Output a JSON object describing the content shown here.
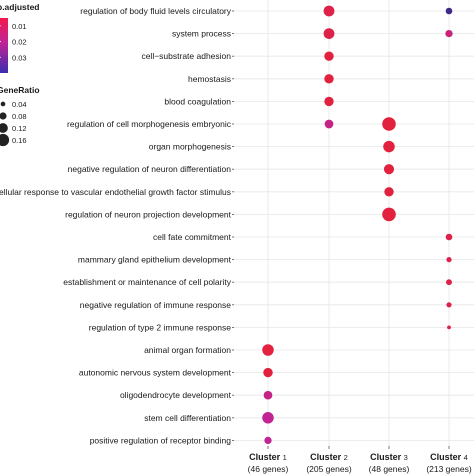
{
  "chart_data": {
    "type": "scatter",
    "title": "",
    "xlabel": "",
    "ylabel": "",
    "grid": true,
    "legend_position": "top-left",
    "clusters": [
      {
        "name": "Cluster",
        "num": "1",
        "count": "(46 genes)"
      },
      {
        "name": "Cluster",
        "num": "2",
        "count": "(205 genes)"
      },
      {
        "name": "Cluster",
        "num": "3",
        "count": "(48 genes)"
      },
      {
        "name": "Cluster",
        "num": "4",
        "count": "(213 genes)"
      }
    ],
    "terms": [
      "regulation of body fluid levels circulatory",
      "system process",
      "cell−substrate adhesion",
      "hemostasis",
      "blood coagulation",
      "regulation of cell morphogenesis embryonic",
      "organ morphogenesis",
      "negative regulation of neuron differentiation",
      "cellular response to vascular endothelial growth factor stimulus",
      "regulation of neuron projection development",
      "cell fate commitment",
      "mammary gland epithelium development",
      "establishment or maintenance of cell polarity",
      "negative regulation of immune response",
      "regulation of type 2 immune response",
      "animal organ formation",
      "autonomic nervous system development",
      "oligodendrocyte development",
      "stem cell differentiation",
      "positive regulation of receptor binding"
    ],
    "points": [
      {
        "term": "regulation of body fluid levels circulatory",
        "cluster": 2,
        "gene_ratio": 0.12,
        "p_adjusted": 0.01
      },
      {
        "term": "regulation of body fluid levels circulatory",
        "cluster": 4,
        "gene_ratio": 0.06,
        "p_adjusted": 0.038
      },
      {
        "term": "system process",
        "cluster": 2,
        "gene_ratio": 0.12,
        "p_adjusted": 0.01
      },
      {
        "term": "system process",
        "cluster": 4,
        "gene_ratio": 0.07,
        "p_adjusted": 0.018
      },
      {
        "term": "cell−substrate adhesion",
        "cluster": 2,
        "gene_ratio": 0.1,
        "p_adjusted": 0.008
      },
      {
        "term": "hemostasis",
        "cluster": 2,
        "gene_ratio": 0.1,
        "p_adjusted": 0.008
      },
      {
        "term": "blood coagulation",
        "cluster": 2,
        "gene_ratio": 0.1,
        "p_adjusted": 0.008
      },
      {
        "term": "regulation of cell morphogenesis embryonic",
        "cluster": 2,
        "gene_ratio": 0.09,
        "p_adjusted": 0.02
      },
      {
        "term": "regulation of cell morphogenesis embryonic",
        "cluster": 3,
        "gene_ratio": 0.16,
        "p_adjusted": 0.008
      },
      {
        "term": "organ morphogenesis",
        "cluster": 3,
        "gene_ratio": 0.13,
        "p_adjusted": 0.008
      },
      {
        "term": "negative regulation of neuron differentiation",
        "cluster": 3,
        "gene_ratio": 0.11,
        "p_adjusted": 0.008
      },
      {
        "term": "cellular response to vascular endothelial growth factor stimulus",
        "cluster": 3,
        "gene_ratio": 0.1,
        "p_adjusted": 0.008
      },
      {
        "term": "regulation of neuron projection development",
        "cluster": 3,
        "gene_ratio": 0.16,
        "p_adjusted": 0.008
      },
      {
        "term": "cell fate commitment",
        "cluster": 4,
        "gene_ratio": 0.06,
        "p_adjusted": 0.01
      },
      {
        "term": "mammary gland epithelium development",
        "cluster": 4,
        "gene_ratio": 0.04,
        "p_adjusted": 0.01
      },
      {
        "term": "establishment or maintenance of cell polarity",
        "cluster": 4,
        "gene_ratio": 0.05,
        "p_adjusted": 0.01
      },
      {
        "term": "negative regulation of immune response",
        "cluster": 4,
        "gene_ratio": 0.04,
        "p_adjusted": 0.01
      },
      {
        "term": "regulation of type 2 immune response",
        "cluster": 4,
        "gene_ratio": 0.02,
        "p_adjusted": 0.01
      },
      {
        "term": "animal organ formation",
        "cluster": 1,
        "gene_ratio": 0.13,
        "p_adjusted": 0.008
      },
      {
        "term": "autonomic nervous system development",
        "cluster": 1,
        "gene_ratio": 0.1,
        "p_adjusted": 0.008
      },
      {
        "term": "oligodendrocyte development",
        "cluster": 1,
        "gene_ratio": 0.09,
        "p_adjusted": 0.02
      },
      {
        "term": "stem cell differentiation",
        "cluster": 1,
        "gene_ratio": 0.13,
        "p_adjusted": 0.022
      },
      {
        "term": "positive regulation of receptor binding",
        "cluster": 1,
        "gene_ratio": 0.07,
        "p_adjusted": 0.022
      }
    ],
    "color_legend": {
      "title": "p.adjusted",
      "ticks": [
        0.01,
        0.02,
        0.03
      ],
      "tick_labels": [
        "0.01",
        "0.02",
        "0.03"
      ],
      "range": [
        0.005,
        0.04
      ],
      "colors": [
        "#e8202a",
        "#2f2a8a"
      ]
    },
    "size_legend": {
      "title": "GeneRatio",
      "values": [
        0.04,
        0.08,
        0.12,
        0.16
      ],
      "labels": [
        "0.04",
        "0.08",
        "0.12",
        "0.16"
      ]
    }
  }
}
